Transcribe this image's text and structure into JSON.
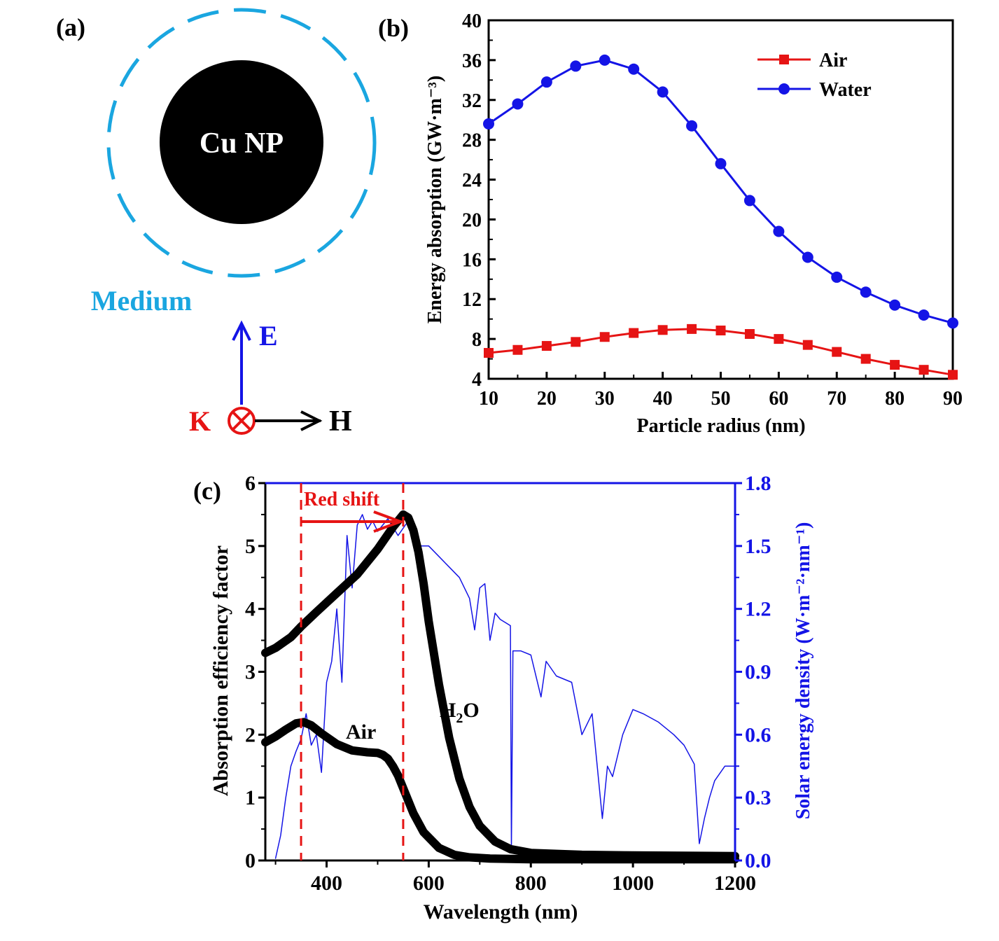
{
  "figure": {
    "panel_a": {
      "label": "(a)",
      "particle_label": "Cu NP",
      "medium_label": "Medium",
      "e_label": "E",
      "k_label": "K",
      "h_label": "H",
      "colors": {
        "medium": "#1aa6e0",
        "e_arrow": "#1414e6",
        "k": "#e61414",
        "particle": "#000000"
      }
    },
    "panel_b_label": "(b)",
    "panel_c_label": "(c)",
    "panel_c_annotations": {
      "red_shift": "Red shift",
      "air_curve": "Air",
      "h2o_curve_main": "H",
      "h2o_curve_sub": "2",
      "h2o_curve_tail": "O"
    }
  },
  "chart_data": [
    {
      "id": "b",
      "type": "line",
      "title": "",
      "xlabel": "Particle radius (nm)",
      "ylabel": "Energy absorption (GW·m⁻³)",
      "xlim": [
        10,
        90
      ],
      "ylim": [
        4,
        40
      ],
      "xticks": [
        10,
        20,
        30,
        40,
        50,
        60,
        70,
        80,
        90
      ],
      "yticks": [
        4,
        8,
        12,
        16,
        20,
        24,
        28,
        32,
        36,
        40
      ],
      "legend_position": "top-right",
      "x": [
        10,
        15,
        20,
        25,
        30,
        35,
        40,
        45,
        50,
        55,
        60,
        65,
        70,
        75,
        80,
        85,
        90
      ],
      "series": [
        {
          "name": "Air",
          "color": "#e61414",
          "marker": "square",
          "values": [
            6.6,
            6.9,
            7.3,
            7.7,
            8.2,
            8.6,
            8.9,
            9.0,
            8.85,
            8.5,
            8.0,
            7.4,
            6.7,
            6.0,
            5.4,
            4.9,
            4.4
          ]
        },
        {
          "name": "Water",
          "color": "#1414e6",
          "marker": "circle",
          "values": [
            29.6,
            31.6,
            33.8,
            35.4,
            36.0,
            35.1,
            32.8,
            29.4,
            25.6,
            21.9,
            18.8,
            16.2,
            14.2,
            12.7,
            11.4,
            10.4,
            9.6
          ]
        }
      ]
    },
    {
      "id": "c",
      "type": "line",
      "title": "",
      "xlabel": "Wavelength (nm)",
      "ylabel": "Absorption efficiency factor",
      "ylabel_right": "Solar energy density (W·m⁻²·nm⁻¹)",
      "xlim": [
        280,
        1200
      ],
      "ylim": [
        0,
        6
      ],
      "ylim_right": [
        0,
        1.8
      ],
      "xticks": [
        400,
        600,
        800,
        1000,
        1200
      ],
      "yticks": [
        0,
        1,
        2,
        3,
        4,
        5,
        6
      ],
      "yticks_right": [
        "0.0",
        "0.3",
        "0.6",
        "0.9",
        "1.2",
        "1.5",
        "1.8"
      ],
      "vlines": [
        350,
        550
      ],
      "series": [
        {
          "name": "H2O",
          "axis": "left",
          "color": "#000000",
          "x": [
            280,
            300,
            330,
            350,
            380,
            420,
            460,
            500,
            530,
            550,
            560,
            570,
            580,
            590,
            600,
            620,
            640,
            660,
            680,
            700,
            730,
            760,
            800,
            900,
            1000,
            1200
          ],
          "values": [
            3.3,
            3.38,
            3.55,
            3.72,
            3.95,
            4.25,
            4.55,
            4.95,
            5.3,
            5.5,
            5.45,
            5.25,
            4.9,
            4.4,
            3.8,
            2.8,
            1.95,
            1.3,
            0.85,
            0.55,
            0.3,
            0.18,
            0.12,
            0.09,
            0.08,
            0.07
          ]
        },
        {
          "name": "Air",
          "axis": "left",
          "color": "#000000",
          "x": [
            280,
            300,
            320,
            340,
            355,
            370,
            390,
            420,
            450,
            480,
            500,
            510,
            520,
            530,
            540,
            550,
            570,
            590,
            620,
            650,
            680,
            720,
            800,
            1000,
            1200
          ],
          "values": [
            1.88,
            1.97,
            2.08,
            2.18,
            2.2,
            2.15,
            2.02,
            1.85,
            1.75,
            1.72,
            1.71,
            1.68,
            1.62,
            1.5,
            1.35,
            1.15,
            0.75,
            0.45,
            0.2,
            0.09,
            0.05,
            0.03,
            0.02,
            0.02,
            0.02
          ]
        },
        {
          "name": "Solar spectrum",
          "axis": "right",
          "color": "#1414e6",
          "x": [
            300,
            310,
            320,
            330,
            340,
            350,
            360,
            370,
            380,
            390,
            400,
            410,
            420,
            430,
            440,
            450,
            460,
            470,
            480,
            490,
            500,
            520,
            540,
            560,
            580,
            600,
            620,
            640,
            660,
            680,
            690,
            700,
            710,
            720,
            730,
            740,
            760,
            762,
            765,
            780,
            800,
            820,
            830,
            850,
            880,
            900,
            920,
            940,
            950,
            960,
            980,
            1000,
            1020,
            1050,
            1080,
            1100,
            1120,
            1130,
            1140,
            1150,
            1160,
            1180,
            1200
          ],
          "values": [
            0.01,
            0.12,
            0.3,
            0.45,
            0.52,
            0.58,
            0.7,
            0.55,
            0.6,
            0.42,
            0.85,
            0.95,
            1.2,
            0.85,
            1.55,
            1.3,
            1.6,
            1.65,
            1.58,
            1.62,
            1.57,
            1.63,
            1.55,
            1.62,
            1.5,
            1.5,
            1.45,
            1.4,
            1.35,
            1.25,
            1.1,
            1.3,
            1.32,
            1.05,
            1.18,
            1.15,
            1.12,
            0.05,
            1.0,
            1.0,
            0.98,
            0.78,
            0.95,
            0.88,
            0.85,
            0.6,
            0.7,
            0.2,
            0.45,
            0.4,
            0.6,
            0.72,
            0.7,
            0.66,
            0.6,
            0.55,
            0.46,
            0.08,
            0.2,
            0.3,
            0.38,
            0.45,
            0.45
          ]
        }
      ]
    }
  ]
}
